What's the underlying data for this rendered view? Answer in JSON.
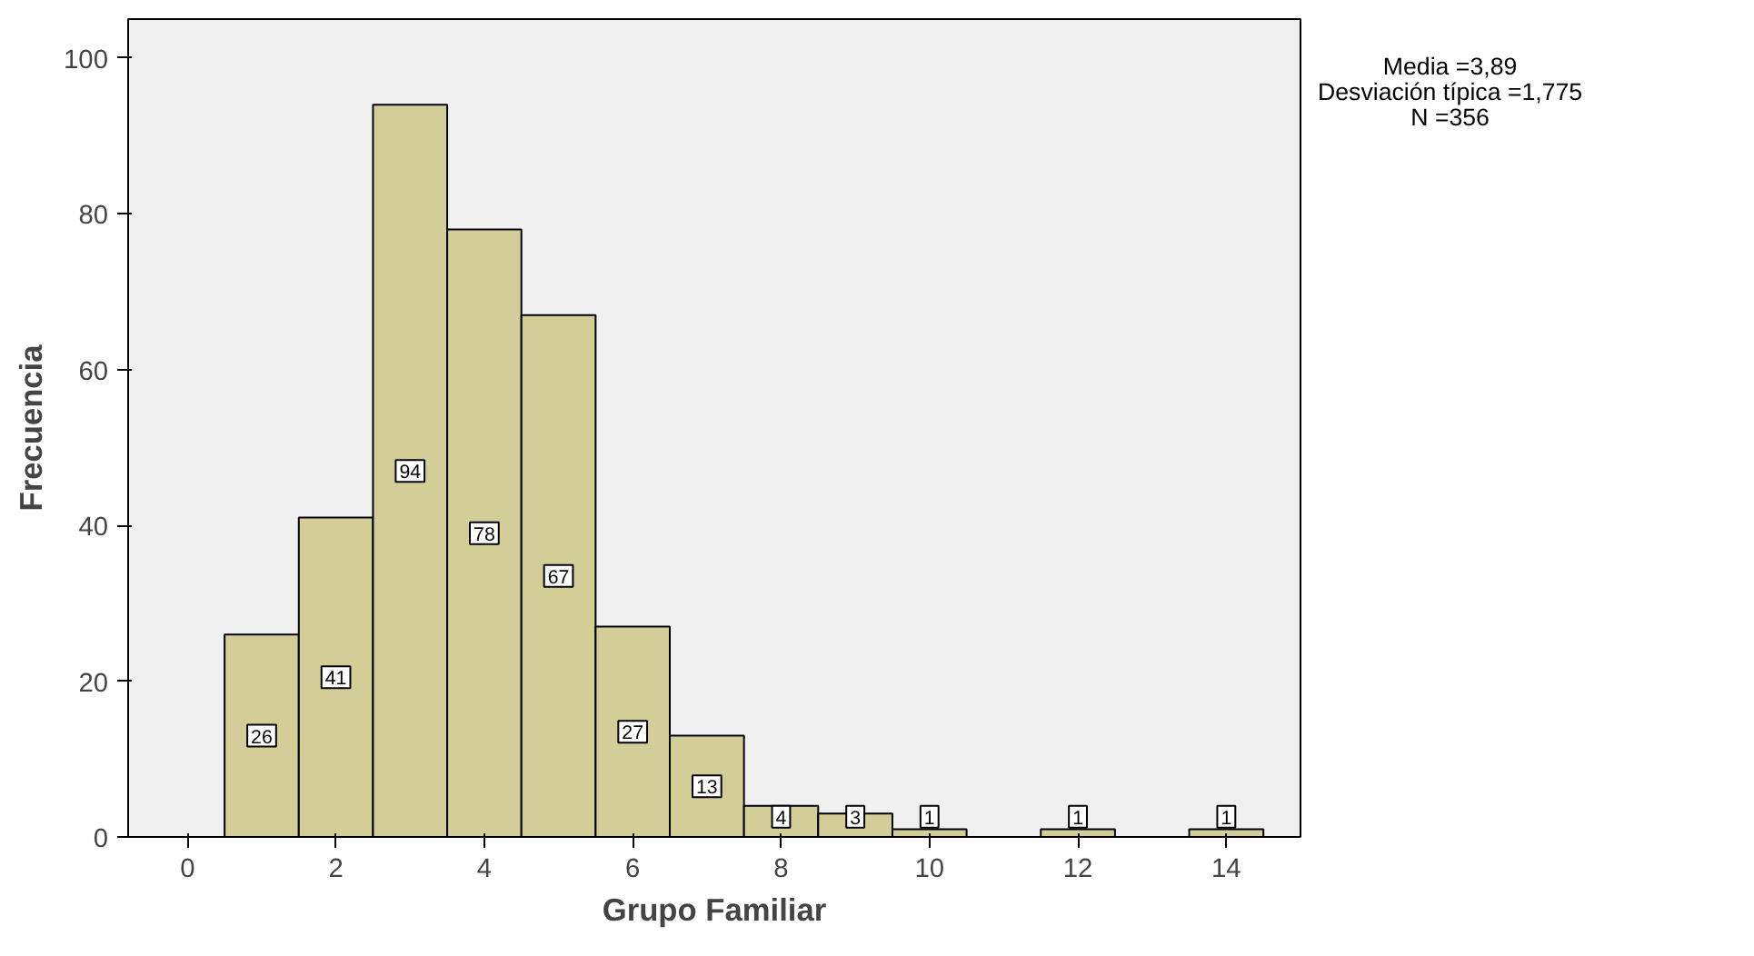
{
  "chart_data": {
    "type": "histogram",
    "xlabel": "Grupo Familiar",
    "ylabel": "Frecuencia",
    "bins": [
      0.5,
      1.5,
      2.5,
      3.5,
      4.5,
      5.5,
      6.5,
      7.5,
      8.5,
      9.5,
      10.5,
      11.5,
      12.5,
      13.5,
      14.5
    ],
    "values": [
      26,
      41,
      94,
      78,
      67,
      27,
      13,
      4,
      3,
      1,
      0,
      1,
      0,
      1
    ],
    "color": "#d3ce97",
    "xlim": [
      -0.8,
      15
    ],
    "xticks": [
      0,
      2,
      4,
      6,
      8,
      10,
      12,
      14
    ],
    "ylim": [
      0,
      105
    ],
    "yticks": [
      0,
      20,
      40,
      60,
      80,
      100
    ],
    "grid": false,
    "value_labels": [
      "26",
      "41",
      "94",
      "78",
      "67",
      "27",
      "13",
      "4",
      "3",
      "1",
      null,
      "1",
      null,
      "1"
    ],
    "annotations": [
      "Media =3,89",
      "Desviación típica =1,775",
      "N =356"
    ]
  }
}
